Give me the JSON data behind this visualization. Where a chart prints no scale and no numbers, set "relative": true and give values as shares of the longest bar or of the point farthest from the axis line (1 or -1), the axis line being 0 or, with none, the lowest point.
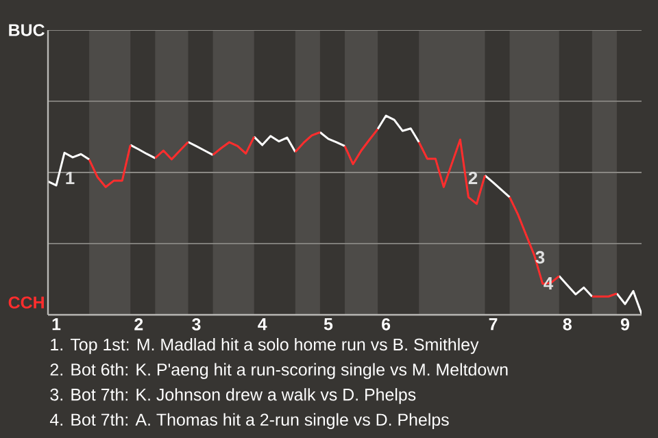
{
  "chart_data": {
    "type": "line",
    "relative": true,
    "categories": [
      null,
      "1",
      null,
      null,
      null,
      null,
      null,
      null,
      null,
      null,
      null,
      "2",
      null,
      null,
      null,
      null,
      null,
      null,
      "3",
      null,
      null,
      null,
      null,
      null,
      null,
      null,
      "4",
      null,
      null,
      null,
      null,
      null,
      null,
      null,
      "5",
      null,
      null,
      null,
      null,
      null,
      null,
      "6",
      null,
      null,
      null,
      null,
      null,
      null,
      null,
      null,
      null,
      null,
      null,
      null,
      "7",
      null,
      null,
      null,
      null,
      null,
      null,
      null,
      null,
      "8",
      null,
      null,
      null,
      null,
      null,
      null,
      "9",
      null,
      null
    ],
    "ref_lines": [
      {
        "axis": "y",
        "value": 0.358,
        "color": "#8a8884"
      },
      {
        "axis": "y",
        "value": 0.715,
        "color": "#8a8884"
      },
      {
        "axis": "y",
        "value": 1.073,
        "color": "#8a8884"
      },
      {
        "axis": "y",
        "value": 1.43,
        "color": "#8a8884"
      }
    ],
    "series": [
      {
        "color": "#ffffff",
        "values": [
          0.67,
          0.65,
          0.814,
          0.791,
          0.807,
          0.78,
          null,
          null,
          null,
          null,
          0.853,
          0.831,
          0.808,
          0.787,
          null,
          null,
          null,
          0.868,
          0.847,
          0.825,
          0.803,
          null,
          null,
          null,
          null,
          0.894,
          0.853,
          0.898,
          0.871,
          0.89,
          0.818,
          null,
          null,
          0.917,
          0.884,
          0.867,
          0.848,
          null,
          null,
          null,
          0.933,
          1,
          0.979,
          0.924,
          0.936,
          0.867,
          null,
          null,
          null,
          null,
          null,
          null,
          null,
          0.7,
          0.665,
          0.628,
          0.591,
          null,
          null,
          null,
          null,
          null,
          0.195,
          0.149,
          0.103,
          0.137,
          0.092,
          null,
          null,
          0.107,
          0.054,
          0.119,
          0.004
        ]
      },
      {
        "color": "#ff2d2d",
        "values": [
          null,
          null,
          null,
          null,
          null,
          0.78,
          0.692,
          0.642,
          0.674,
          0.674,
          0.853,
          null,
          null,
          0.787,
          0.825,
          0.781,
          0.825,
          0.868,
          null,
          null,
          0.803,
          0.837,
          0.867,
          0.848,
          0.81,
          0.894,
          null,
          null,
          null,
          null,
          0.818,
          0.864,
          0.901,
          0.917,
          null,
          null,
          0.848,
          0.757,
          0.825,
          0.88,
          0.933,
          null,
          null,
          null,
          null,
          0.867,
          0.784,
          0.784,
          0.642,
          0.761,
          0.88,
          0.591,
          0.557,
          0.7,
          null,
          null,
          0.591,
          0.505,
          0.401,
          0.298,
          0.156,
          0.16,
          0.195,
          null,
          null,
          null,
          0.092,
          0.092,
          0.092,
          0.107,
          null,
          null,
          null
        ]
      }
    ],
    "annotations": [
      "BUC",
      "CCH",
      "1",
      "2",
      "3",
      "4",
      "1. Top 1st: M. Madlad hit a solo home run vs B. Smithley",
      "2. Bot 6th: K. P'aeng hit a run-scoring single vs M. Meltdown",
      "3. Bot 7th: K. Johnson drew a walk vs D. Phelps",
      "4. Bot 7th: A. Thomas hit a 2-run single vs D. Phelps"
    ]
  }
}
